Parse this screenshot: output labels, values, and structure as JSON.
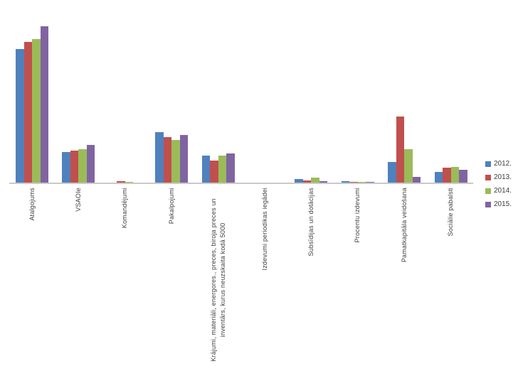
{
  "chart_data": {
    "type": "bar",
    "title": "",
    "xlabel": "",
    "ylabel": "",
    "axis_note": "y-axis has no tick labels or gridlines; values are estimated relative units read from bar heights",
    "grid": false,
    "legend_position": "right",
    "ylim": [
      0,
      230
    ],
    "categories": [
      "Atalgojums",
      "VSAOIe",
      "Komandējumi",
      "Pakalpojumi",
      "Krājumi, materiāli, energores., preces, biroja preces un\ninventārs, kurus neuzskaita kodā 5000",
      "Izdevumi periodikas iegādei",
      "Subsīdijas un dotācijas",
      "Procentu izdevumi",
      "Pamatkapitāla veidošana",
      "Sociālie pabalsti"
    ],
    "series": [
      {
        "name": "2012.",
        "color": "#4F81BD",
        "values": [
          188,
          43,
          0,
          71,
          38,
          0,
          5,
          2,
          29,
          15
        ]
      },
      {
        "name": "2013.",
        "color": "#C0504D",
        "values": [
          198,
          45,
          2,
          64,
          31,
          0,
          3,
          1,
          93,
          21
        ]
      },
      {
        "name": "2014.",
        "color": "#9BBB59",
        "values": [
          202,
          47,
          1,
          60,
          38,
          0,
          7,
          0.5,
          47,
          22
        ]
      },
      {
        "name": "2015.",
        "color": "#8064A2",
        "values": [
          220,
          53,
          0,
          67,
          41,
          0,
          2,
          0.5,
          8,
          18
        ]
      }
    ]
  },
  "legend": {
    "items": [
      "2012.",
      "2013.",
      "2014.",
      "2015."
    ]
  },
  "colors": {
    "axis_line": "#c9c9c9",
    "label_text": "#404040",
    "background": "#ffffff"
  }
}
